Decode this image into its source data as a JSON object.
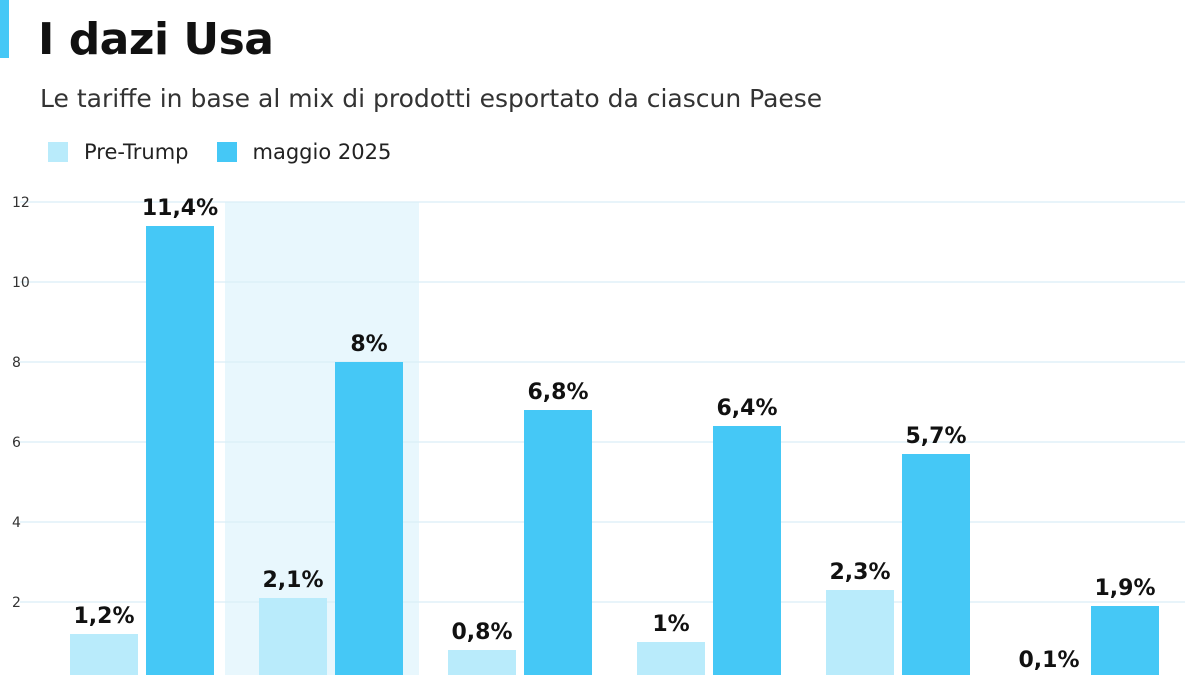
{
  "title": "I dazi Usa",
  "subtitle": "Le tariffe in base al mix di prodotti esportato da ciascun Paese",
  "colors": {
    "accent": "#45c8f6",
    "highlight": "#e8f7fd",
    "grid": "#d9eef7"
  },
  "chart_data": {
    "type": "bar",
    "categories": [
      "",
      "",
      "",
      "",
      "",
      ""
    ],
    "series": [
      {
        "name": "Pre-Trump",
        "color": "#b9ebfb",
        "values": [
          1.2,
          2.1,
          0.8,
          1.0,
          2.3,
          0.1
        ],
        "labels": [
          "1,2%",
          "2,1%",
          "0,8%",
          "1%",
          "2,3%",
          "0,1%"
        ]
      },
      {
        "name": "maggio 2025",
        "color": "#45c8f6",
        "values": [
          11.4,
          8.0,
          6.8,
          6.4,
          5.7,
          1.9
        ],
        "labels": [
          "11,4%",
          "8%",
          "6,8%",
          "6,4%",
          "5,7%",
          "1,9%"
        ]
      }
    ],
    "yticks": [
      "2",
      "4",
      "6",
      "8",
      "10",
      "12"
    ],
    "ytick_values": [
      2,
      4,
      6,
      8,
      10,
      12
    ],
    "ylim": [
      0,
      12
    ],
    "highlighted_group": 1,
    "grid": true,
    "legend": "top-left"
  }
}
